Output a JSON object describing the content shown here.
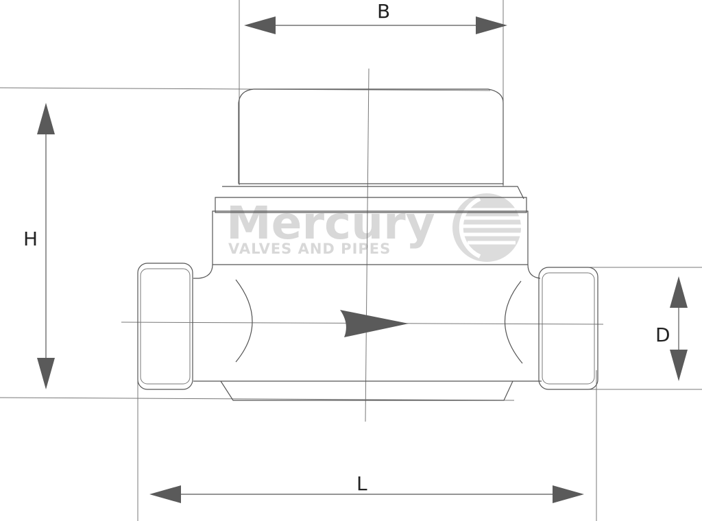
{
  "dimensions": {
    "width_label": "B",
    "height_label": "H",
    "pipe_label": "D",
    "length_label": "L"
  },
  "watermark": {
    "brand": "Mercury",
    "tagline": "VALVES AND PIPES",
    "color": "#d8d8d8"
  },
  "colors": {
    "line": "#555555",
    "arrow": "#5a5a5a"
  }
}
